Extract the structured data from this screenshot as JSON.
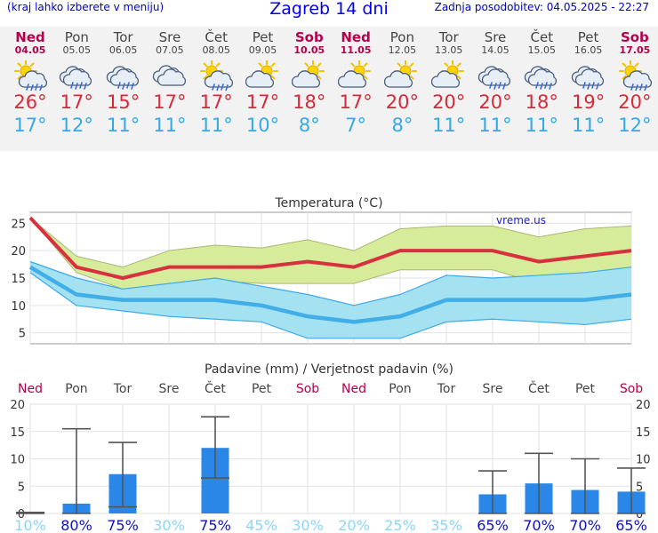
{
  "header": {
    "menu_hint": "(kraj lahko izberete v meniju)",
    "title": "Zagreb 14 dni",
    "updated": "Zadnja posodobitev: 04.05.2025 - 22:27"
  },
  "days": [
    {
      "name": "Ned",
      "date": "04.05",
      "weekend": true,
      "icon": "sun-cloud-rain-icon",
      "max": "26°",
      "min": "17°"
    },
    {
      "name": "Pon",
      "date": "05.05",
      "weekend": false,
      "icon": "cloud-rain-icon",
      "max": "17°",
      "min": "12°"
    },
    {
      "name": "Tor",
      "date": "06.05",
      "weekend": false,
      "icon": "cloud-rain-icon",
      "max": "15°",
      "min": "11°"
    },
    {
      "name": "Sre",
      "date": "07.05",
      "weekend": false,
      "icon": "cloud-icon",
      "max": "17°",
      "min": "11°"
    },
    {
      "name": "Čet",
      "date": "08.05",
      "weekend": false,
      "icon": "sun-cloud-rain-icon",
      "max": "17°",
      "min": "11°"
    },
    {
      "name": "Pet",
      "date": "09.05",
      "weekend": false,
      "icon": "sun-cloud-icon",
      "max": "17°",
      "min": "10°"
    },
    {
      "name": "Sob",
      "date": "10.05",
      "weekend": true,
      "icon": "sun-cloud-icon",
      "max": "18°",
      "min": "8°"
    },
    {
      "name": "Ned",
      "date": "11.05",
      "weekend": true,
      "icon": "sun-cloud-icon",
      "max": "17°",
      "min": "7°"
    },
    {
      "name": "Pon",
      "date": "12.05",
      "weekend": false,
      "icon": "sun-cloud-icon",
      "max": "20°",
      "min": "8°"
    },
    {
      "name": "Tor",
      "date": "13.05",
      "weekend": false,
      "icon": "sun-cloud-icon",
      "max": "20°",
      "min": "11°"
    },
    {
      "name": "Sre",
      "date": "14.05",
      "weekend": false,
      "icon": "cloud-rain-icon",
      "max": "20°",
      "min": "11°"
    },
    {
      "name": "Čet",
      "date": "15.05",
      "weekend": false,
      "icon": "cloud-rain-icon",
      "max": "18°",
      "min": "11°"
    },
    {
      "name": "Pet",
      "date": "16.05",
      "weekend": false,
      "icon": "cloud-rain-icon",
      "max": "19°",
      "min": "11°"
    },
    {
      "name": "Sob",
      "date": "17.05",
      "weekend": true,
      "icon": "sun-cloud-rain-icon",
      "max": "20°",
      "min": "12°"
    }
  ],
  "colors": {
    "max_line": "#d93040",
    "min_line": "#42aee8",
    "max_band": "#d6ec9a",
    "min_band": "#a4e2f2",
    "rain_bar": "#2a87e8",
    "weekend": "#b5004b",
    "prob_low": "#8fd4f5",
    "prob_high": "#1010c0"
  },
  "chart_data": [
    {
      "type": "line",
      "title": "Temperatura (°C)",
      "watermark": "vreme.us",
      "ylim": [
        3,
        27
      ],
      "yticks": [
        5,
        10,
        15,
        20,
        25
      ],
      "x": [
        0,
        1,
        2,
        3,
        4,
        5,
        6,
        7,
        8,
        9,
        10,
        11,
        12,
        13
      ],
      "series": [
        {
          "name": "max",
          "values": [
            26,
            17,
            15,
            17,
            17,
            17,
            18,
            17,
            20,
            20,
            20,
            18,
            19,
            20
          ]
        },
        {
          "name": "max_high",
          "values": [
            26,
            19,
            17,
            20,
            21,
            20.5,
            22,
            20,
            24,
            24.5,
            24.5,
            22.5,
            24,
            24.5
          ]
        },
        {
          "name": "max_low",
          "values": [
            26,
            16,
            13,
            14,
            14.5,
            14,
            14,
            14,
            16.5,
            16.5,
            16.5,
            14,
            15,
            16
          ]
        },
        {
          "name": "min",
          "values": [
            17,
            12,
            11,
            11,
            11,
            10,
            8,
            7,
            8,
            11,
            11,
            11,
            11,
            12
          ]
        },
        {
          "name": "min_high",
          "values": [
            18,
            15,
            13,
            14,
            15,
            13.5,
            12,
            10,
            12,
            15.5,
            15,
            15.5,
            16,
            17
          ]
        },
        {
          "name": "min_low",
          "values": [
            16,
            10,
            9,
            8,
            7.5,
            7,
            4,
            4,
            4,
            7,
            7.5,
            7,
            6.5,
            7.5
          ]
        }
      ]
    },
    {
      "type": "bar",
      "title": "Padavine (mm) / Verjetnost padavin (%)",
      "ylim": [
        0,
        20
      ],
      "yticks": [
        0,
        5,
        10,
        15,
        20
      ],
      "categories": [
        "Ned",
        "Pon",
        "Tor",
        "Sre",
        "Čet",
        "Pet",
        "Sob",
        "Ned",
        "Pon",
        "Tor",
        "Sre",
        "Čet",
        "Pet",
        "Sob"
      ],
      "weekend": [
        true,
        false,
        false,
        false,
        false,
        false,
        true,
        true,
        false,
        false,
        false,
        false,
        false,
        true
      ],
      "values": [
        0.2,
        1.8,
        7.2,
        0,
        12.0,
        0,
        0,
        0,
        0,
        0,
        3.5,
        5.5,
        4.3,
        4.0
      ],
      "range_low": [
        0,
        0,
        1.2,
        0,
        6.5,
        0,
        0,
        0,
        0,
        0,
        0,
        0,
        0,
        0
      ],
      "range_high": [
        0.2,
        15.5,
        13.0,
        0,
        17.7,
        0,
        0,
        0,
        0,
        0,
        7.8,
        11.0,
        10.0,
        8.3
      ],
      "probability": [
        "10%",
        "80%",
        "75%",
        "30%",
        "75%",
        "45%",
        "30%",
        "20%",
        "25%",
        "35%",
        "65%",
        "70%",
        "70%",
        "65%"
      ],
      "probability_level": [
        10,
        80,
        75,
        30,
        75,
        45,
        30,
        20,
        25,
        35,
        65,
        70,
        70,
        65
      ]
    }
  ]
}
